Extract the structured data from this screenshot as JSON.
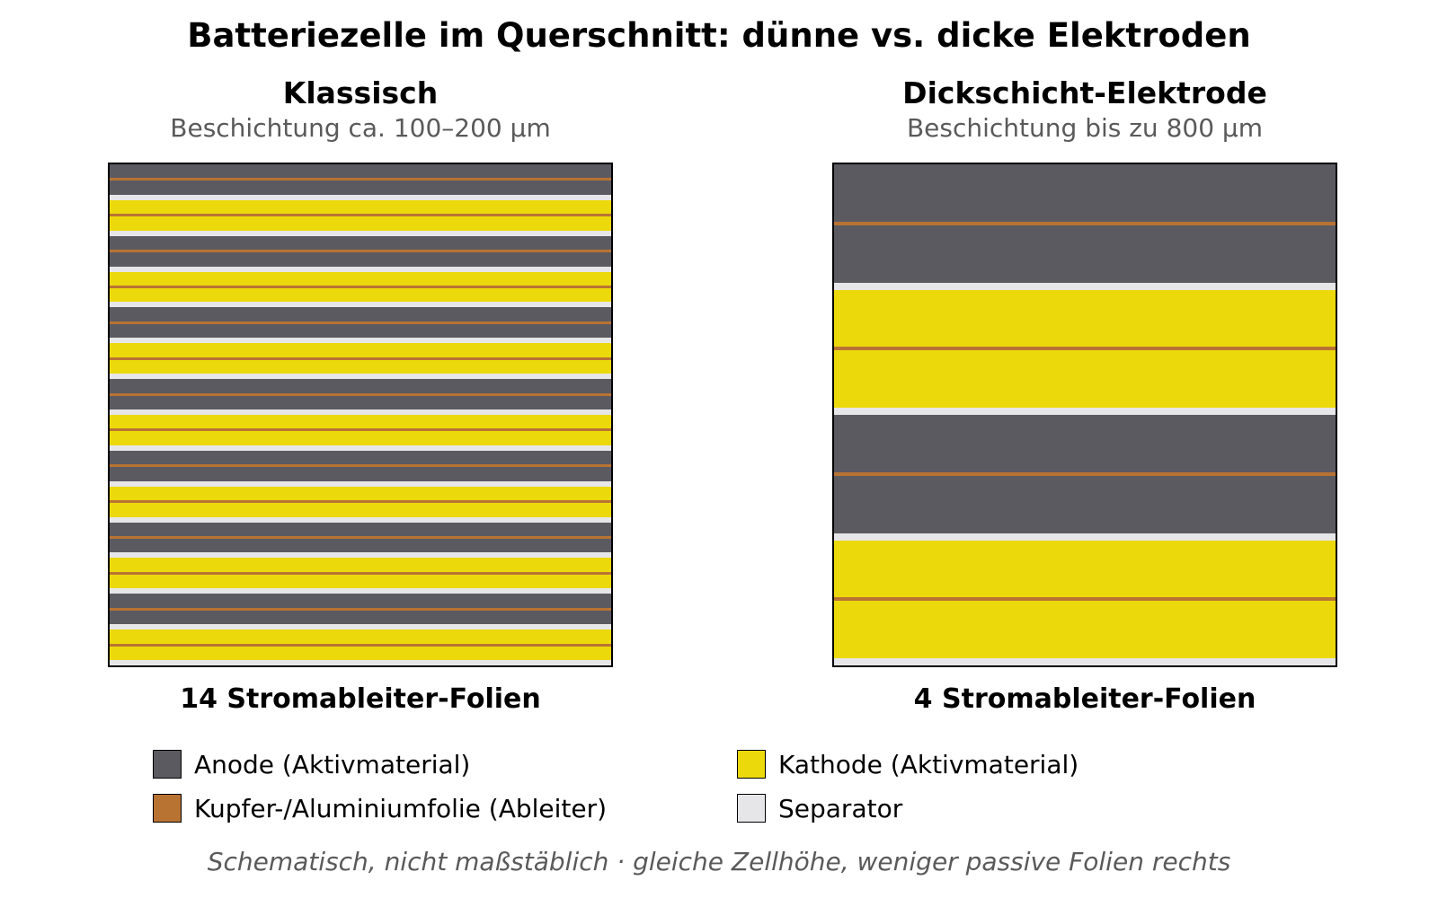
{
  "title": "Batteriezelle im Querschnitt: dünne vs. dicke Elektroden",
  "colors": {
    "anode": "#5b5a61",
    "cathode": "#ecd90b",
    "foil": "#b87333",
    "separator": "#e6e6e8",
    "outline": "#000000"
  },
  "panels": [
    {
      "title": "Klassisch",
      "subtitle": "Beschichtung ca. 100–200 µm",
      "foil_count_label": "14 Stromableiter-Folien",
      "layer_sequence": [
        "anode",
        "cathode",
        "anode",
        "cathode",
        "anode",
        "cathode",
        "anode",
        "cathode",
        "anode",
        "cathode",
        "anode",
        "cathode",
        "anode",
        "cathode"
      ]
    },
    {
      "title": "Dickschicht-Elektrode",
      "subtitle": "Beschichtung bis zu 800 µm",
      "foil_count_label": "4 Stromableiter-Folien",
      "layer_sequence": [
        "anode",
        "cathode",
        "anode",
        "cathode"
      ]
    }
  ],
  "legend": [
    {
      "key": "anode",
      "label": "Anode (Aktivmaterial)"
    },
    {
      "key": "cathode",
      "label": "Kathode (Aktivmaterial)"
    },
    {
      "key": "foil",
      "label": "Kupfer-/Aluminiumfolie (Ableiter)"
    },
    {
      "key": "separator",
      "label": "Separator"
    }
  ],
  "footnote": "Schematisch, nicht maßstäblich · gleiche Zellhöhe, weniger passive Folien rechts"
}
